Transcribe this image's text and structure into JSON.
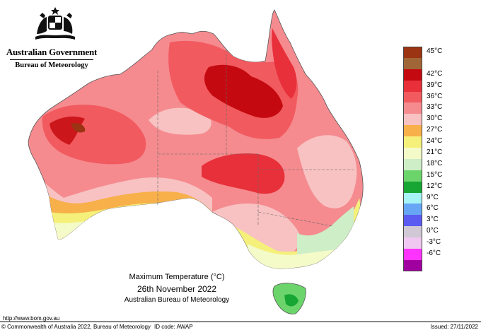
{
  "header": {
    "government": "Australian Government",
    "bureau": "Bureau of Meteorology",
    "crest_icon": "coat-of-arms-icon"
  },
  "map": {
    "date": "26th November 2022",
    "caption_title": "Maximum Temperature (°C)",
    "caption_org": "Australian Bureau of Meteorology"
  },
  "legend": [
    {
      "label": "45°C",
      "color": "#9a3412"
    },
    {
      "label": "",
      "color": "#a16637"
    },
    {
      "label": "42°C",
      "color": "#c40a10"
    },
    {
      "label": "39°C",
      "color": "#e8303a"
    },
    {
      "label": "36°C",
      "color": "#f15a5f"
    },
    {
      "label": "33°C",
      "color": "#f58b8f"
    },
    {
      "label": "30°C",
      "color": "#f8c2c2"
    },
    {
      "label": "27°C",
      "color": "#f7b04a"
    },
    {
      "label": "24°C",
      "color": "#f5f07a"
    },
    {
      "label": "21°C",
      "color": "#f4fbc9"
    },
    {
      "label": "18°C",
      "color": "#cdeec6"
    },
    {
      "label": "15°C",
      "color": "#6bd56b"
    },
    {
      "label": "12°C",
      "color": "#17a534"
    },
    {
      "label": "9°C",
      "color": "#a7f4f7"
    },
    {
      "label": "6°C",
      "color": "#67a6f4"
    },
    {
      "label": "3°C",
      "color": "#5b5bf2"
    },
    {
      "label": "0°C",
      "color": "#d0c8d4"
    },
    {
      "label": "-3°C",
      "color": "#f0c7f0"
    },
    {
      "label": "-6°C",
      "color": "#ff33ff"
    },
    {
      "label": "",
      "color": "#a000a0"
    }
  ],
  "footer": {
    "url": "http://www.bom.gov.au",
    "copyright": "© Commonwealth of Australia 2022, Bureau of Meteorology",
    "id_code": "ID code: AWAP",
    "issued": "Issued: 27/11/2022"
  }
}
